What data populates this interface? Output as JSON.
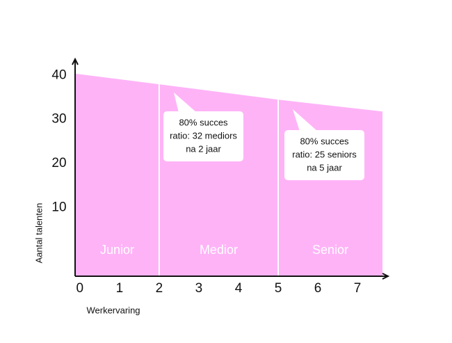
{
  "chart_data": {
    "type": "area",
    "ylabel": "Aantal talenten",
    "xlabel": "Werkervaring",
    "x": [
      -0.12,
      2,
      5,
      7.63
    ],
    "values": [
      40.4,
      38,
      34.5,
      31.8
    ],
    "color": "#ffb3f7",
    "divider_color": "#ffffff",
    "xlim": [
      -0.12,
      7.77
    ],
    "ylim": [
      -5.6,
      43.7
    ],
    "xticks": [
      0,
      1,
      2,
      3,
      4,
      5,
      6,
      7
    ],
    "yticks": [
      10,
      20,
      30,
      40
    ],
    "dividers": [
      2,
      5
    ],
    "phases": [
      "Junior",
      "Medior",
      "Senior"
    ],
    "annotations": [
      {
        "lines": [
          "80% succes",
          "ratio: 32 mediors",
          "na 2 jaar"
        ]
      },
      {
        "lines": [
          "80% succes",
          "ratio: 25 seniors",
          "na 5 jaar"
        ]
      }
    ]
  }
}
